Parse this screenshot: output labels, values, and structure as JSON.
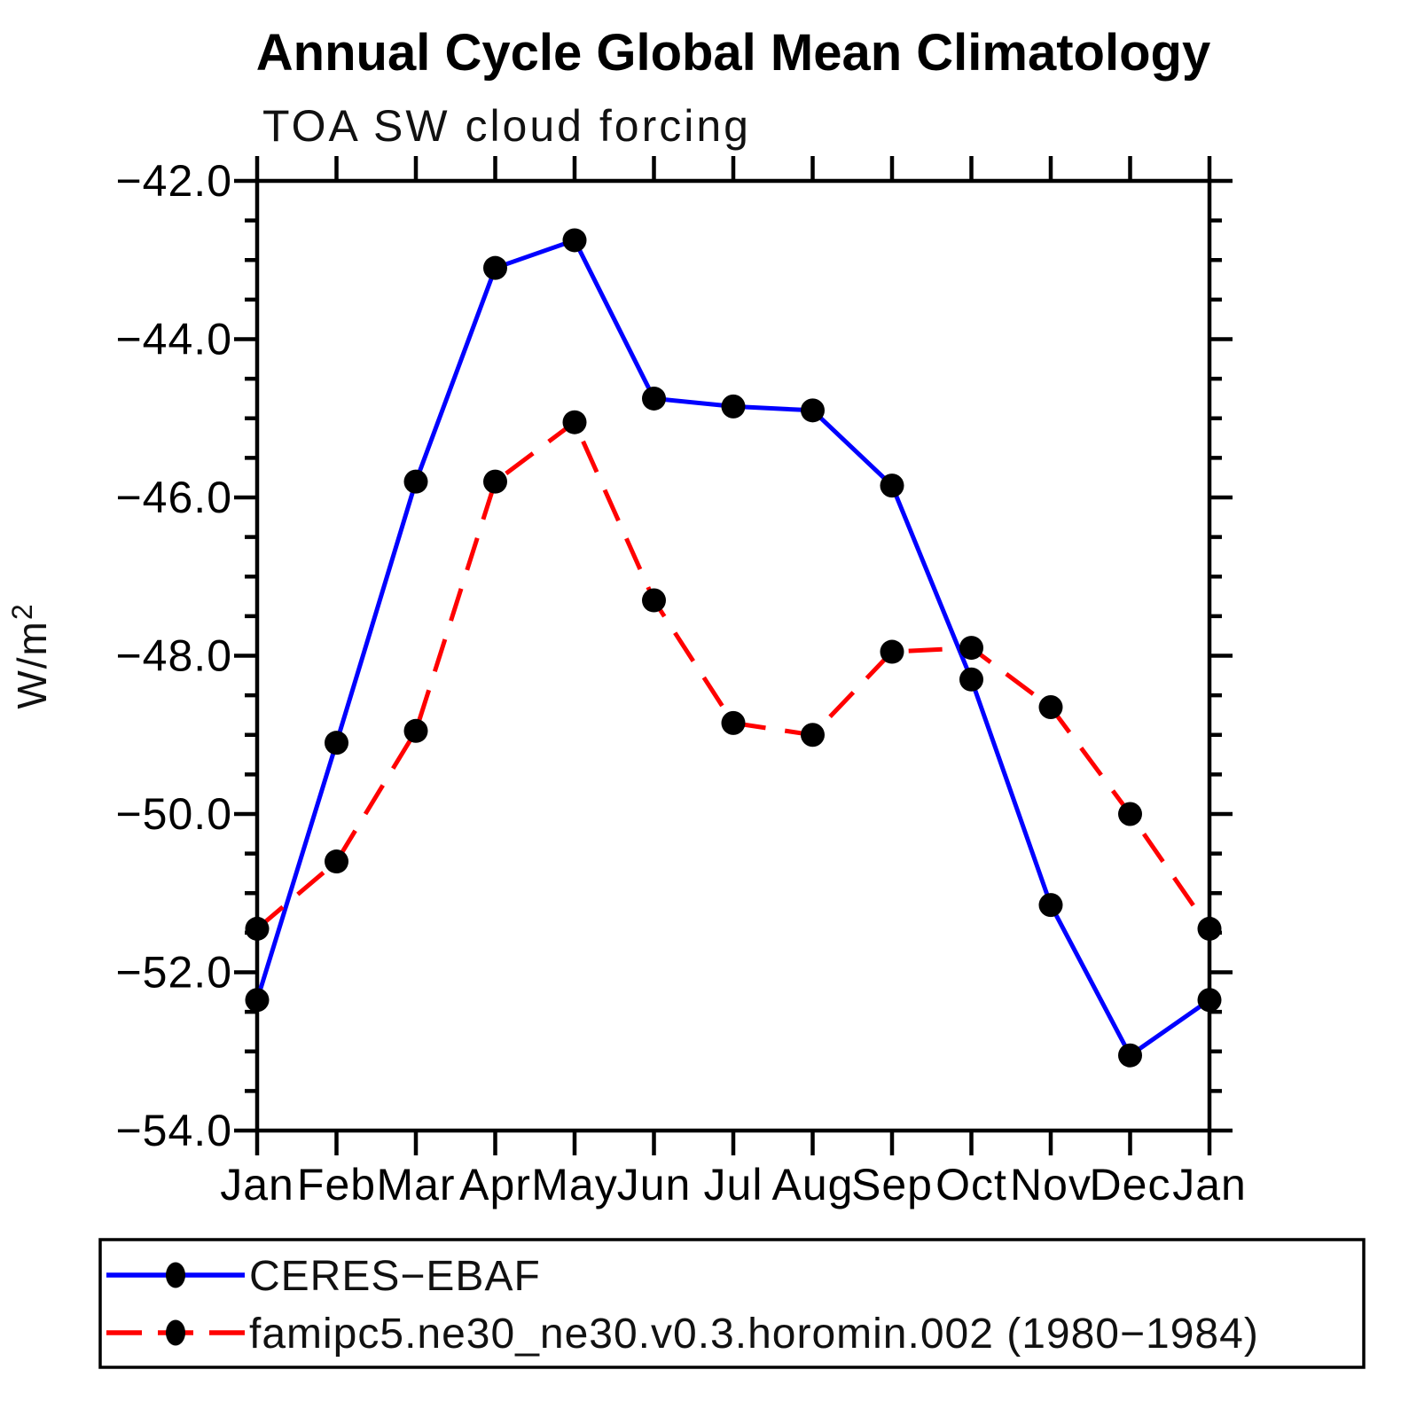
{
  "page": {
    "background": "#ffffff",
    "axis_color": "#000000",
    "marker_color": "#000000"
  },
  "chart_data": {
    "type": "line",
    "title": "Annual Cycle Global Mean Climatology",
    "subtitle": "TOA SW cloud forcing",
    "ylabel": "W/m²",
    "xlabel": "",
    "x_categories": [
      "Jan",
      "Feb",
      "Mar",
      "Apr",
      "May",
      "Jun",
      "Jul",
      "Aug",
      "Sep",
      "Oct",
      "Nov",
      "Dec",
      "Jan"
    ],
    "ylim": [
      -54.0,
      -42.0
    ],
    "ytick_step_major": 2.0,
    "ytick_step_minor": 0.5,
    "ytick_labels": [
      "−42.0",
      "−44.0",
      "−46.0",
      "−48.0",
      "−50.0",
      "−52.0",
      "−54.0"
    ],
    "grid": false,
    "legend_position": "bottom",
    "series": [
      {
        "name": "CERES−EBAF",
        "color": "#0000ff",
        "style": "solid",
        "marker": "filled-circle",
        "marker_color": "#000000",
        "values": [
          -52.35,
          -49.1,
          -45.8,
          -43.1,
          -42.75,
          -44.75,
          -44.85,
          -44.9,
          -45.85,
          -48.3,
          -51.15,
          -53.05,
          -52.35
        ]
      },
      {
        "name": "famipc5.ne30_ne30.v0.3.horomin.002 (1980−1984)",
        "color": "#ff0000",
        "style": "dashed",
        "marker": "filled-circle",
        "marker_color": "#000000",
        "values": [
          -51.45,
          -50.6,
          -48.95,
          -45.8,
          -45.05,
          -47.3,
          -48.85,
          -49.0,
          -47.95,
          -47.9,
          -48.65,
          -50.0,
          -51.45
        ]
      }
    ]
  }
}
